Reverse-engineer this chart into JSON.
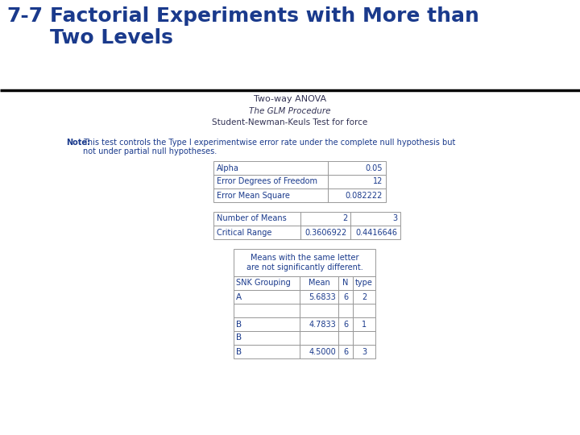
{
  "title_number": "7-7",
  "title_text": "Factorial Experiments with More than\nTwo Levels",
  "title_color": "#1a3a8c",
  "bg_color": "#ffffff",
  "subtitle1": "Two-way ANOVA",
  "subtitle2": "The GLM Procedure",
  "subtitle3": "Student-Newman-Keuls Test for force",
  "note_bold": "Note:",
  "note_text1": "This test controls the Type I experimentwise error rate under the complete null hypothesis but",
  "note_text2": "not under partial null hypotheses.",
  "table1_rows": [
    [
      "Alpha",
      "0.05"
    ],
    [
      "Error Degrees of Freedom",
      "12"
    ],
    [
      "Error Mean Square",
      "0.082222"
    ]
  ],
  "table2_rows": [
    [
      "Number of Means",
      "2",
      "3"
    ],
    [
      "Critical Range",
      "0.3606922",
      "0.4416646"
    ]
  ],
  "table3_header": "Means with the same letter\nare not significantly different.",
  "table3_col_headers": [
    "SNK Grouping",
    "Mean",
    "N",
    "type"
  ],
  "table3_rows": [
    [
      "A",
      "5.6833",
      "6",
      "2"
    ],
    [
      "",
      "",
      "",
      ""
    ],
    [
      "B",
      "4.7833",
      "6",
      "1"
    ],
    [
      "B",
      "",
      "",
      ""
    ],
    [
      "B",
      "4.5000",
      "6",
      "3"
    ]
  ],
  "table_text_color": "#1a3a8c",
  "table_border_color": "#999999",
  "note_color": "#1a3a8c",
  "dark_text": "#333355"
}
